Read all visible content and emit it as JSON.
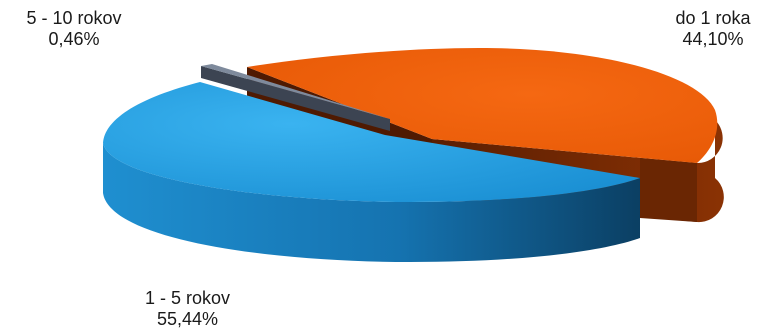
{
  "chart_data": {
    "type": "pie",
    "style": "3d-exploded",
    "slices": [
      {
        "label": "do 1 roka",
        "value": 44.1,
        "value_label": "44,10%",
        "color": "#ee5e0a",
        "side_color": "#7a2a04"
      },
      {
        "label": "1 - 5 rokov",
        "value": 55.44,
        "value_label": "55,44%",
        "color": "#1e9be0",
        "side_color": "#0f5e8c"
      },
      {
        "label": "5 - 10 rokov",
        "value": 0.46,
        "value_label": "0,46%",
        "color": "#6e7a8c",
        "side_color": "#3c4452"
      }
    ]
  }
}
